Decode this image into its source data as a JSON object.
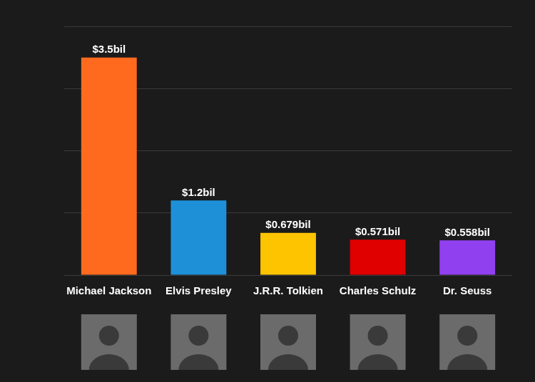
{
  "chart_data": {
    "type": "bar",
    "categories": [
      "Michael Jackson",
      "Elvis Presley",
      "J.R.R. Tolkien",
      "Charles Schulz",
      "Dr. Seuss"
    ],
    "values": [
      3.5,
      1.2,
      0.679,
      0.571,
      0.558
    ],
    "value_labels": [
      "$3.5bil",
      "$1.2bil",
      "$0.679bil",
      "$0.571bil",
      "$0.558bil"
    ],
    "colors": [
      "#ff6a1f",
      "#1e90d8",
      "#ffc400",
      "#e00000",
      "#9140ef"
    ],
    "ylim": [
      0,
      4
    ],
    "yticks": [
      0,
      1,
      2,
      3,
      4
    ],
    "grid": true,
    "data_labels": true,
    "tick_labels": "x"
  }
}
